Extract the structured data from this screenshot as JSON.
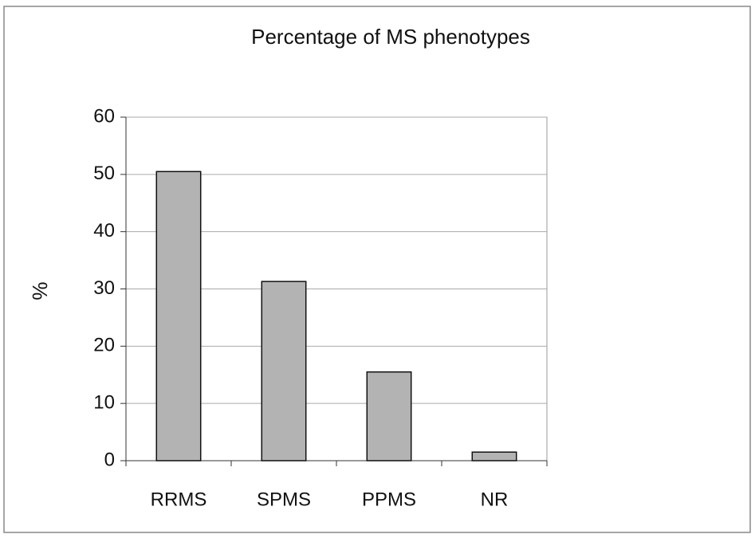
{
  "chart_data": {
    "type": "bar",
    "title": "Percentage of MS phenotypes",
    "y_label": "%",
    "categories": [
      "RRMS",
      "SPMS",
      "PPMS",
      "NR"
    ],
    "values": [
      50.5,
      31.3,
      15.5,
      1.5
    ],
    "color": "#b3b3b3",
    "ylim": [
      0,
      60
    ],
    "yticks": [
      0,
      10,
      20,
      30,
      40,
      50,
      60
    ],
    "grid": true
  }
}
